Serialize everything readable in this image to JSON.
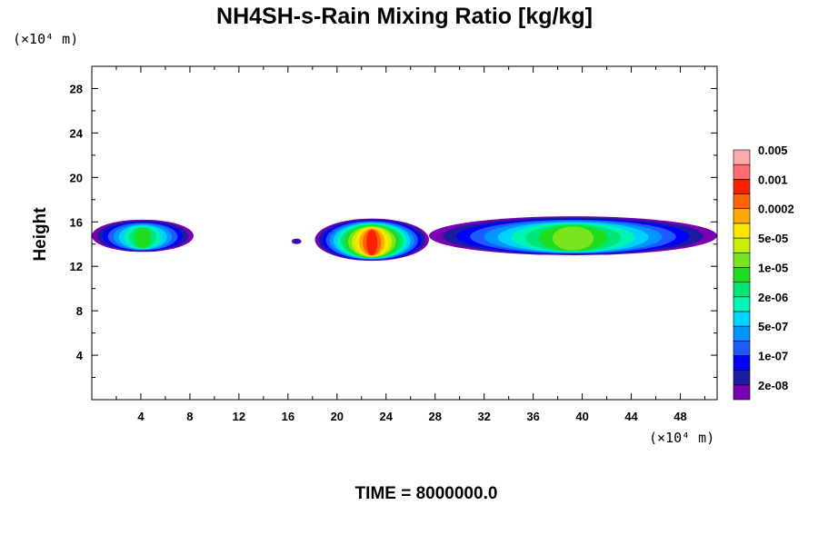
{
  "chart_data": {
    "type": "heatmap",
    "title": "NH4SH-s-Rain Mixing Ratio [kg/kg]",
    "ylabel": "Height",
    "x_unit": "(×10⁴ m)",
    "y_unit": "(×10⁴ m)",
    "xlim": [
      0,
      51
    ],
    "ylim": [
      0,
      30
    ],
    "x_ticks": [
      4,
      8,
      12,
      16,
      20,
      24,
      28,
      32,
      36,
      40,
      44,
      48
    ],
    "y_ticks": [
      4,
      8,
      12,
      16,
      20,
      24,
      28
    ],
    "time_label": "TIME = 8000000.0",
    "colorbar": {
      "colors": [
        "#7a00b4",
        "#1c1ca0",
        "#0000ff",
        "#1e5aff",
        "#0096ff",
        "#00d2ff",
        "#00f5b4",
        "#00e678",
        "#1edc1e",
        "#78e61e",
        "#c8f000",
        "#ffe600",
        "#ffaa00",
        "#ff6400",
        "#ff1e00",
        "#ff6e6e",
        "#ffaaaa"
      ],
      "labels": [
        "2e-08",
        "1e-07",
        "5e-07",
        "2e-06",
        "1e-05",
        "5e-05",
        "0.0002",
        "0.001",
        "0.005"
      ]
    },
    "field_blobs": [
      {
        "x": [
          0,
          8.3
        ],
        "y": [
          13.3,
          16.2
        ],
        "peak": 8
      },
      {
        "x": [
          16.3,
          17.1
        ],
        "y": [
          14.0,
          14.5
        ],
        "peak": 1
      },
      {
        "x": [
          18.2,
          27.5
        ],
        "y": [
          12.5,
          16.3
        ],
        "peak": 14
      },
      {
        "x": [
          27.5,
          51
        ],
        "y": [
          13.0,
          16.5
        ],
        "peak": 9
      }
    ]
  }
}
